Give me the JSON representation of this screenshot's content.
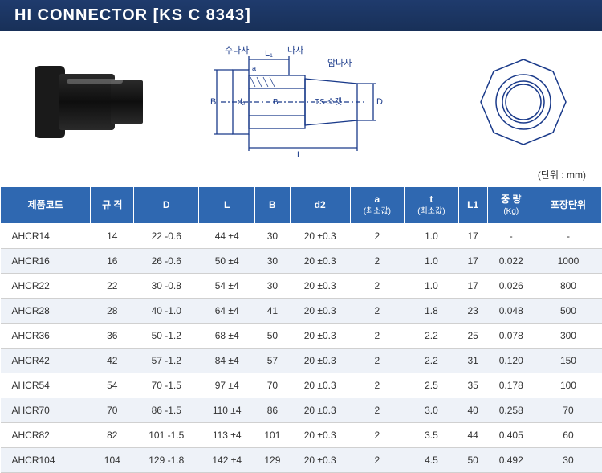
{
  "header": {
    "title": "HI CONNECTOR   [KS C 8343]"
  },
  "diagram": {
    "labels": {
      "male_thread": "수나사",
      "thread": "나사",
      "female_thread": "암나사",
      "socket": "TS 소켓",
      "B": "B",
      "D": "D",
      "L": "L",
      "L1": "L₁",
      "a": "a",
      "d2": "d₂"
    },
    "colors": {
      "stroke": "#1a3a8a",
      "text": "#1a3a8a"
    }
  },
  "unit_label": "(단위 : mm)",
  "table": {
    "columns": [
      {
        "key": "code",
        "label": "제품코드"
      },
      {
        "key": "spec",
        "label": "규 격"
      },
      {
        "key": "D",
        "label": "D"
      },
      {
        "key": "L",
        "label": "L"
      },
      {
        "key": "B",
        "label": "B"
      },
      {
        "key": "d2",
        "label": "d2"
      },
      {
        "key": "a",
        "label": "a",
        "sub": "(최소값)"
      },
      {
        "key": "t",
        "label": "t",
        "sub": "(최소값)"
      },
      {
        "key": "L1",
        "label": "L1"
      },
      {
        "key": "wt",
        "label": "중 량",
        "sub": "(Kg)"
      },
      {
        "key": "pkg",
        "label": "포장단위"
      }
    ],
    "rows": [
      {
        "code": "AHCR14",
        "spec": "14",
        "D": "22 -0.6",
        "L": "44 ±4",
        "B": "30",
        "d2": "20 ±0.3",
        "a": "2",
        "t": "1.0",
        "L1": "17",
        "wt": "-",
        "pkg": "-"
      },
      {
        "code": "AHCR16",
        "spec": "16",
        "D": "26 -0.6",
        "L": "50 ±4",
        "B": "30",
        "d2": "20 ±0.3",
        "a": "2",
        "t": "1.0",
        "L1": "17",
        "wt": "0.022",
        "pkg": "1000"
      },
      {
        "code": "AHCR22",
        "spec": "22",
        "D": "30 -0.8",
        "L": "54 ±4",
        "B": "30",
        "d2": "20 ±0.3",
        "a": "2",
        "t": "1.0",
        "L1": "17",
        "wt": "0.026",
        "pkg": "800"
      },
      {
        "code": "AHCR28",
        "spec": "28",
        "D": "40 -1.0",
        "L": "64 ±4",
        "B": "41",
        "d2": "20 ±0.3",
        "a": "2",
        "t": "1.8",
        "L1": "23",
        "wt": "0.048",
        "pkg": "500"
      },
      {
        "code": "AHCR36",
        "spec": "36",
        "D": "50 -1.2",
        "L": "68 ±4",
        "B": "50",
        "d2": "20 ±0.3",
        "a": "2",
        "t": "2.2",
        "L1": "25",
        "wt": "0.078",
        "pkg": "300"
      },
      {
        "code": "AHCR42",
        "spec": "42",
        "D": "57 -1.2",
        "L": "84 ±4",
        "B": "57",
        "d2": "20 ±0.3",
        "a": "2",
        "t": "2.2",
        "L1": "31",
        "wt": "0.120",
        "pkg": "150"
      },
      {
        "code": "AHCR54",
        "spec": "54",
        "D": "70 -1.5",
        "L": "97 ±4",
        "B": "70",
        "d2": "20 ±0.3",
        "a": "2",
        "t": "2.5",
        "L1": "35",
        "wt": "0.178",
        "pkg": "100"
      },
      {
        "code": "AHCR70",
        "spec": "70",
        "D": "86 -1.5",
        "L": "110 ±4",
        "B": "86",
        "d2": "20 ±0.3",
        "a": "2",
        "t": "3.0",
        "L1": "40",
        "wt": "0.258",
        "pkg": "70"
      },
      {
        "code": "AHCR82",
        "spec": "82",
        "D": "101 -1.5",
        "L": "113 ±4",
        "B": "101",
        "d2": "20 ±0.3",
        "a": "2",
        "t": "3.5",
        "L1": "44",
        "wt": "0.405",
        "pkg": "60"
      },
      {
        "code": "AHCR104",
        "spec": "104",
        "D": "129 -1.8",
        "L": "142 ±4",
        "B": "129",
        "d2": "20 ±0.3",
        "a": "2",
        "t": "4.5",
        "L1": "50",
        "wt": "0.492",
        "pkg": "30"
      }
    ]
  },
  "style": {
    "header_bg": "#1f3b6d",
    "th_bg": "#2f68b1",
    "th_fg": "#ffffff",
    "row_even_bg": "#eef2f8",
    "row_odd_bg": "#ffffff",
    "border": "#d0d0d0",
    "text": "#333333"
  }
}
